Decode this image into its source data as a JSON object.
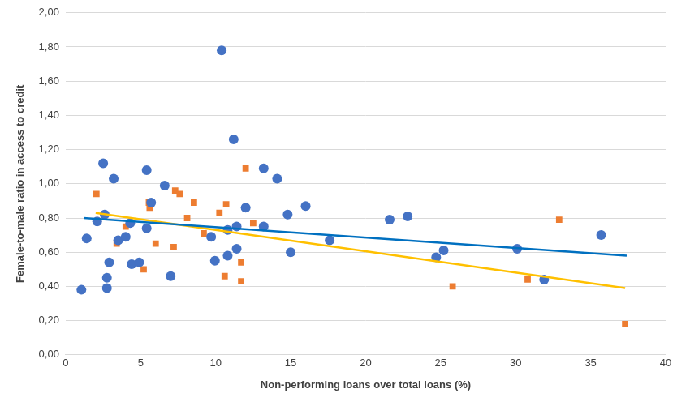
{
  "chart_data": {
    "type": "scatter",
    "x_label": "Non-performing loans over total loans (%)",
    "y_label": "Female-to-male ratio in access to credit",
    "xlim": [
      0,
      40
    ],
    "xticks": [
      0,
      5,
      10,
      15,
      20,
      25,
      30,
      35,
      40
    ],
    "ylim": [
      0,
      2
    ],
    "yticks": [
      {
        "value": 0,
        "label": "0,00"
      },
      {
        "value": 0.2,
        "label": "0,20"
      },
      {
        "value": 0.4,
        "label": "0,40"
      },
      {
        "value": 0.6,
        "label": "0,60"
      },
      {
        "value": 0.8,
        "label": "0,80"
      },
      {
        "value": 1.0,
        "label": "1,00"
      },
      {
        "value": 1.2,
        "label": "1,20"
      },
      {
        "value": 1.4,
        "label": "1,40"
      },
      {
        "value": 1.6,
        "label": "1,60"
      },
      {
        "value": 1.8,
        "label": "1,80"
      },
      {
        "value": 2.0,
        "label": "2,00"
      }
    ],
    "grid": "y",
    "series": [
      {
        "type": "scatter",
        "marker": "circle",
        "color": "#4472c4",
        "x": [
          1.05,
          1.4,
          2.1,
          2.5,
          2.6,
          2.75,
          2.75,
          2.9,
          3.2,
          3.5,
          4.0,
          4.3,
          4.4,
          4.9,
          5.4,
          5.4,
          5.7,
          6.6,
          7.0,
          9.7,
          9.95,
          10.4,
          10.8,
          10.8,
          11.2,
          11.4,
          11.4,
          12.0,
          13.2,
          13.2,
          14.1,
          14.8,
          15.0,
          16.0,
          17.6,
          21.6,
          22.8,
          24.7,
          25.2,
          30.1,
          31.9,
          35.7
        ],
        "values": [
          0.38,
          0.68,
          0.78,
          1.12,
          0.82,
          0.45,
          0.39,
          0.54,
          1.03,
          0.67,
          0.69,
          0.77,
          0.53,
          0.54,
          1.08,
          0.74,
          0.89,
          0.99,
          0.46,
          0.69,
          0.55,
          1.78,
          0.73,
          0.58,
          1.26,
          0.75,
          0.62,
          0.86,
          0.75,
          1.09,
          1.03,
          0.82,
          0.6,
          0.87,
          0.67,
          0.79,
          0.81,
          0.57,
          0.61,
          0.62,
          0.44,
          0.7
        ]
      },
      {
        "type": "scatter",
        "marker": "square",
        "color": "#ed7d31",
        "x": [
          2.05,
          3.4,
          4.0,
          5.2,
          5.55,
          5.6,
          6.0,
          7.2,
          7.3,
          7.6,
          8.1,
          8.55,
          9.2,
          10.25,
          10.6,
          10.7,
          11.7,
          11.7,
          12.0,
          12.5,
          25.8,
          30.8,
          32.9,
          37.3
        ],
        "values": [
          0.94,
          0.65,
          0.75,
          0.5,
          0.89,
          0.86,
          0.65,
          0.63,
          0.96,
          0.94,
          0.8,
          0.89,
          0.71,
          0.83,
          0.46,
          0.88,
          0.54,
          0.43,
          1.09,
          0.77,
          0.4,
          0.44,
          0.79,
          0.18
        ]
      },
      {
        "type": "line",
        "line_style": "solid",
        "color": "#0070c0",
        "x": [
          1.2,
          37.4
        ],
        "values": [
          0.8,
          0.58
        ]
      },
      {
        "type": "line",
        "line_style": "solid",
        "color": "#ffc000",
        "x": [
          2.0,
          37.3
        ],
        "values": [
          0.83,
          0.39
        ]
      }
    ]
  }
}
